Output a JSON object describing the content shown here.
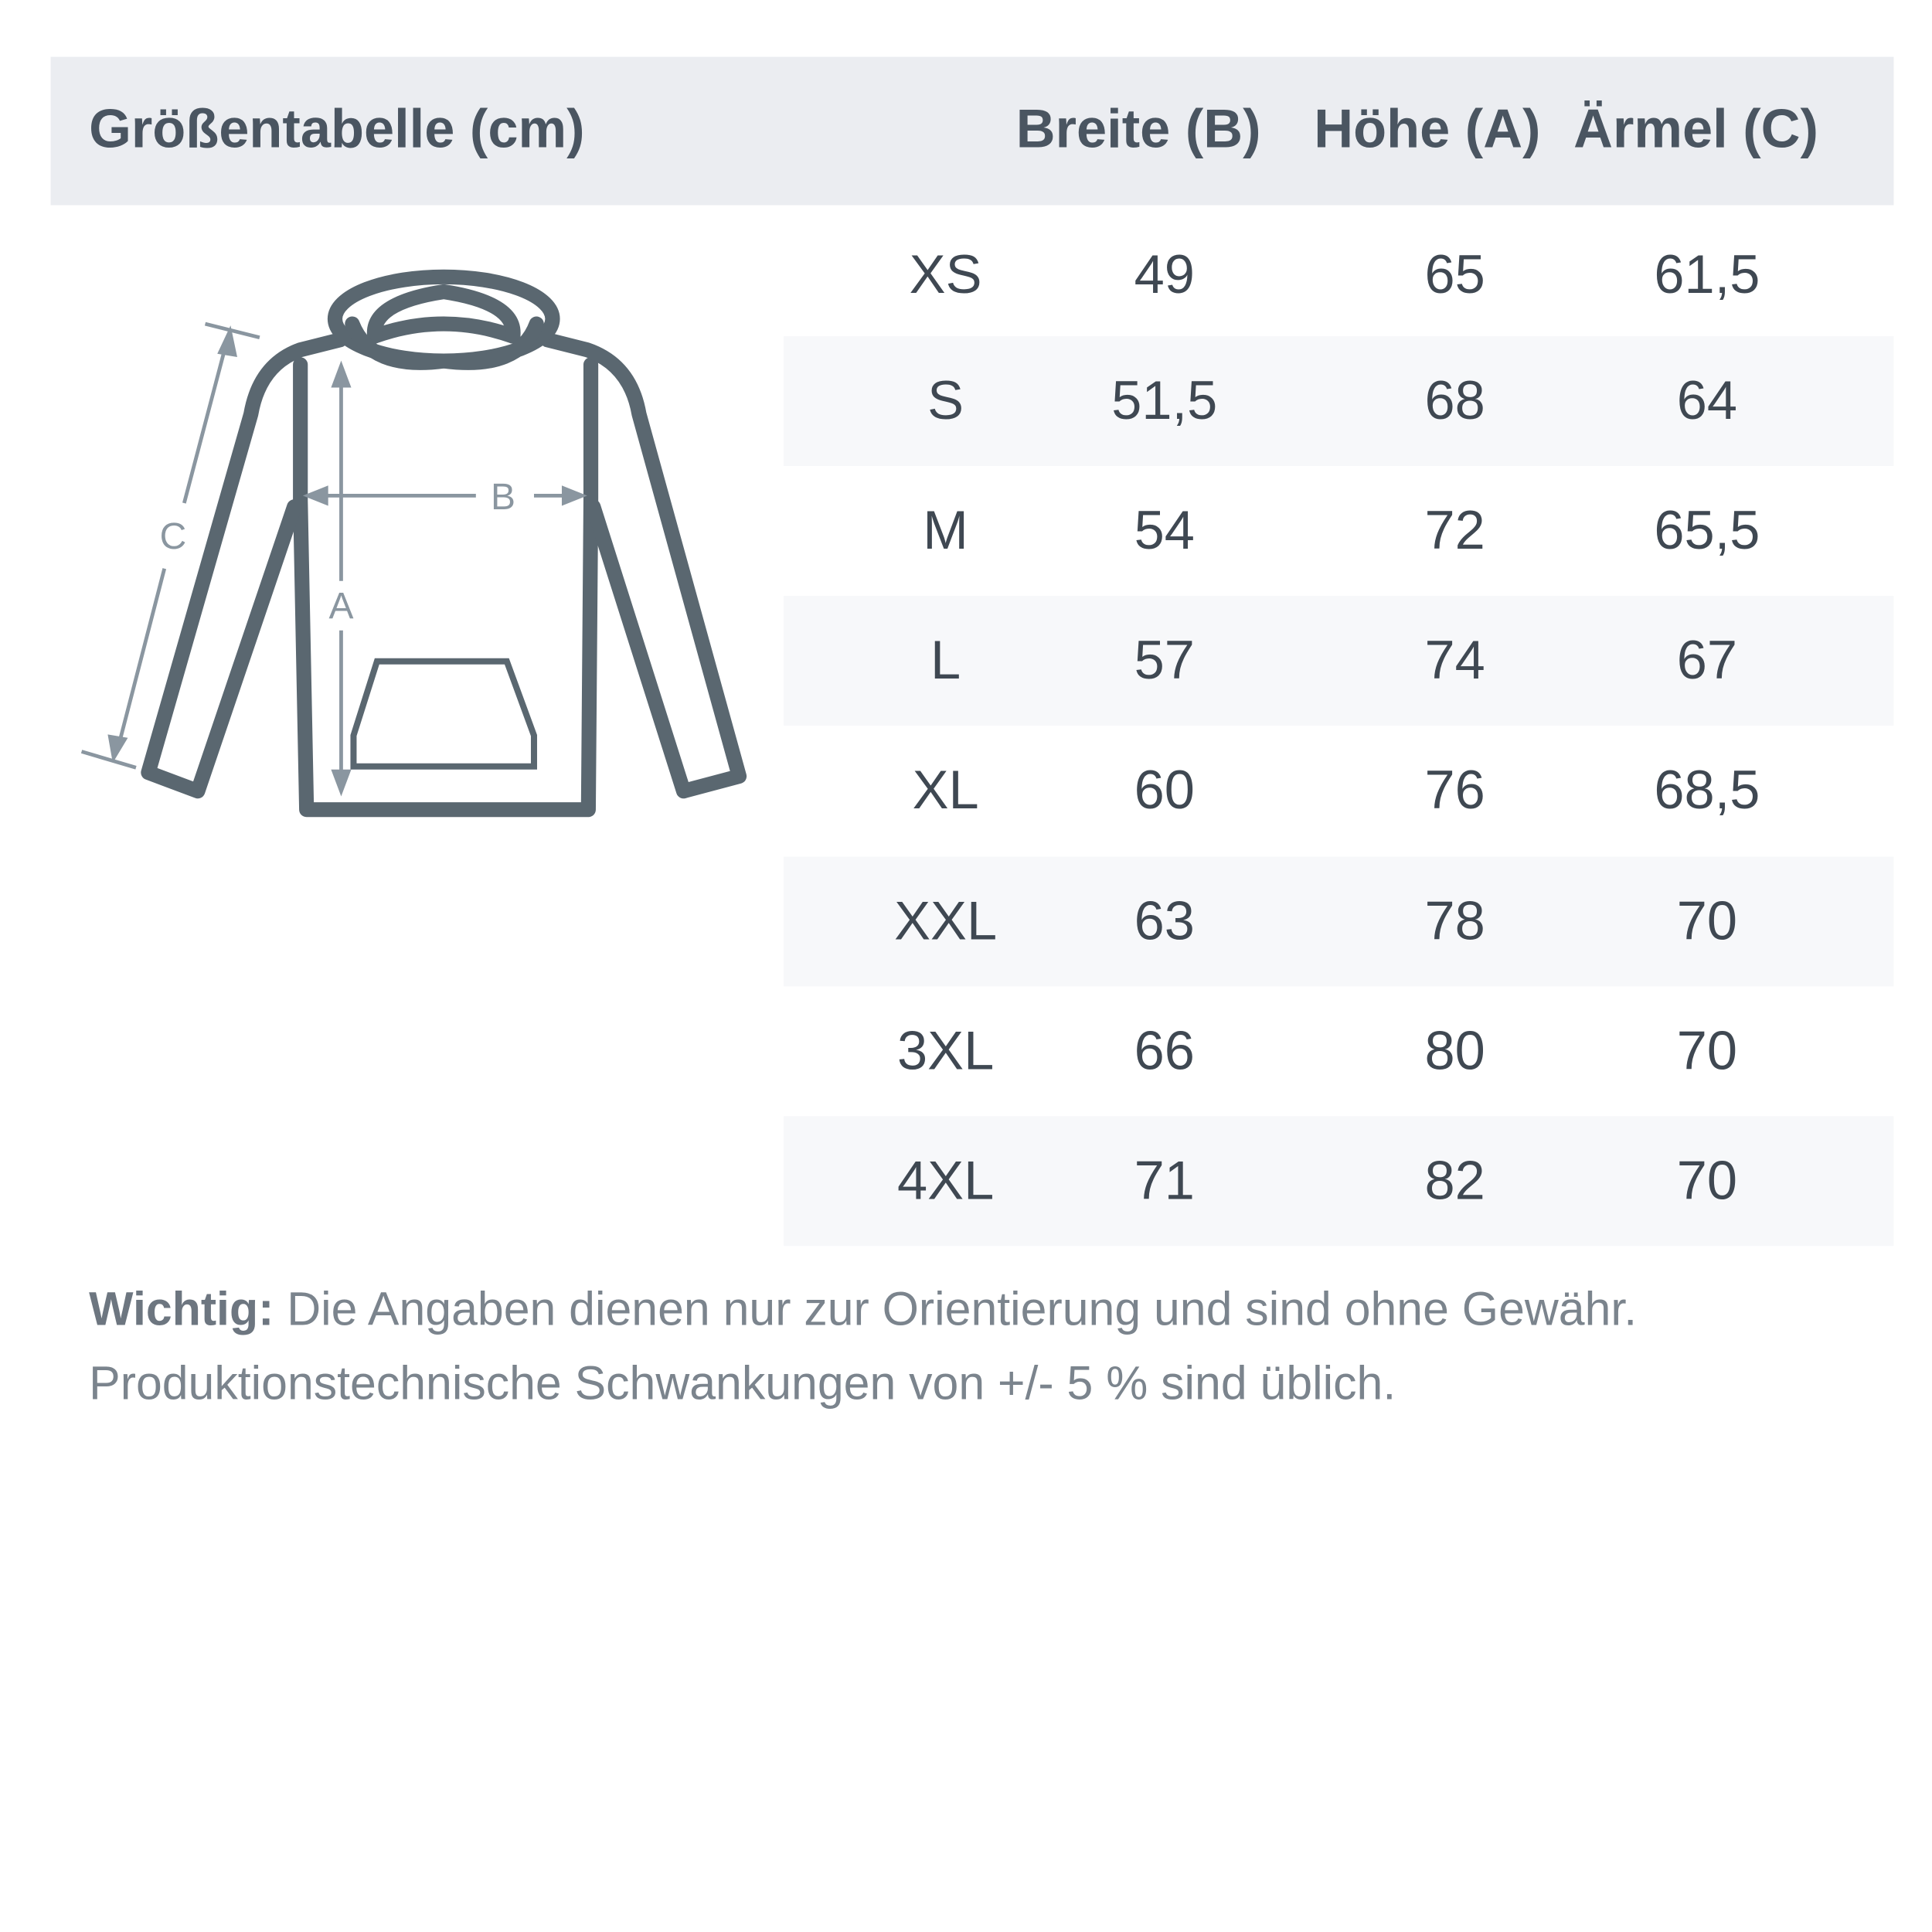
{
  "header": {
    "title": "Größentabelle (cm)",
    "columns": [
      "Breite (B)",
      "Höhe (A)",
      "Ärmel (C)"
    ]
  },
  "diagram": {
    "labels": {
      "width": "B",
      "height": "A",
      "sleeve": "C"
    },
    "outline_color": "#5a6770",
    "measure_color": "#8a96a0"
  },
  "rows": [
    {
      "size": "XS",
      "breite": "49",
      "hoehe": "65",
      "aermel": "61,5"
    },
    {
      "size": "S",
      "breite": "51,5",
      "hoehe": "68",
      "aermel": "64"
    },
    {
      "size": "M",
      "breite": "54",
      "hoehe": "72",
      "aermel": "65,5"
    },
    {
      "size": "L",
      "breite": "57",
      "hoehe": "74",
      "aermel": "67"
    },
    {
      "size": "XL",
      "breite": "60",
      "hoehe": "76",
      "aermel": "68,5"
    },
    {
      "size": "XXL",
      "breite": "63",
      "hoehe": "78",
      "aermel": "70"
    },
    {
      "size": "3XL",
      "breite": "66",
      "hoehe": "80",
      "aermel": "70"
    },
    {
      "size": "4XL",
      "breite": "71",
      "hoehe": "82",
      "aermel": "70"
    }
  ],
  "note": {
    "label": "Wichtig:",
    "line1": " Die Angaben dienen nur zur Orientierung und sind ohne Gewähr.",
    "line2": "Produktionstechnische Schwankungen von +/- 5 % sind üblich."
  },
  "colors": {
    "header_bg": "#ebedf1",
    "row_shade": "#f7f8fa",
    "text": "#3f4852"
  }
}
